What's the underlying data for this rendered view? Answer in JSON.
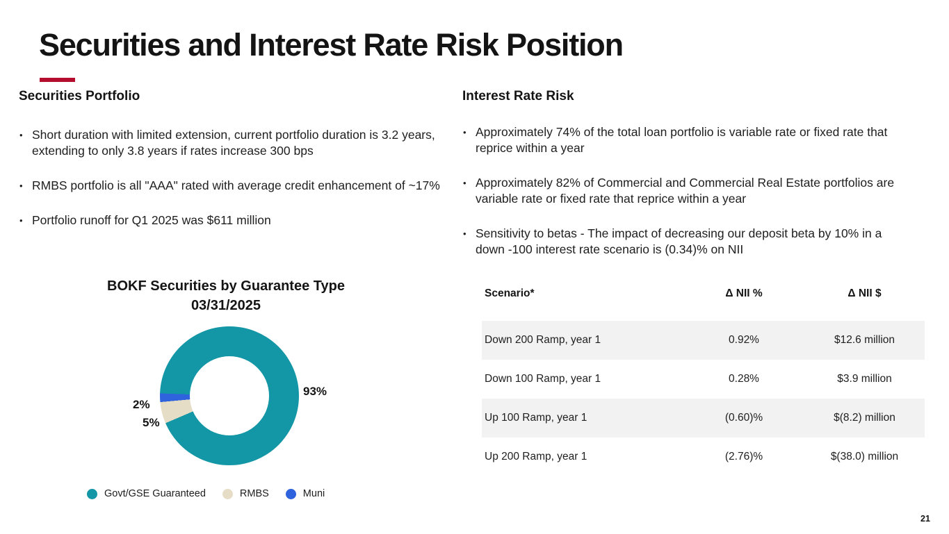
{
  "slide": {
    "title": "Securities and Interest Rate Risk Position",
    "page_number": "21",
    "accent_color": "#b50d2e"
  },
  "left_section": {
    "heading": "Securities Portfolio",
    "bullets": [
      "Short duration with limited extension, current portfolio duration is 3.2 years, extending to only 3.8 years if rates increase 300 bps",
      "RMBS portfolio is all \"AAA\" rated with average credit enhancement of ~17%",
      "Portfolio runoff for Q1 2025 was $611 million"
    ]
  },
  "right_section": {
    "heading": "Interest Rate Risk",
    "bullets": [
      "Approximately 74% of the total loan portfolio is variable rate or fixed rate that reprice within a year",
      "Approximately 82% of Commercial and Commercial Real Estate portfolios are variable rate or fixed rate that reprice within a year",
      "Sensitivity to betas - The impact of decreasing our deposit beta by 10% in a down -100 interest rate scenario is (0.34)% on NII"
    ]
  },
  "chart_data": {
    "type": "pie",
    "donut": true,
    "title": "BOKF Securities by Guarantee Type",
    "subtitle": "03/31/2025",
    "categories": [
      "Govt/GSE Guaranteed",
      "RMBS",
      "Muni"
    ],
    "values": [
      93,
      5,
      2
    ],
    "labels": {
      "govt": "93%",
      "rmbs": "5%",
      "muni": "2%"
    },
    "colors": [
      "#1396a5",
      "#e5ddc5",
      "#2f63dd"
    ],
    "start_angle_deg": 272,
    "legend_position": "bottom"
  },
  "table": {
    "stripe_color": "#f2f2f2",
    "headers": [
      "Scenario*",
      "Δ NII %",
      "Δ NII $"
    ],
    "rows": [
      [
        "Down 200 Ramp, year 1",
        "0.92%",
        "$12.6 million"
      ],
      [
        "Down 100 Ramp, year 1",
        "0.28%",
        "$3.9 million"
      ],
      [
        "Up 100 Ramp, year 1",
        "(0.60)%",
        "$(8.2) million"
      ],
      [
        "Up 200 Ramp, year 1",
        "(2.76)%",
        "$(38.0) million"
      ]
    ]
  }
}
